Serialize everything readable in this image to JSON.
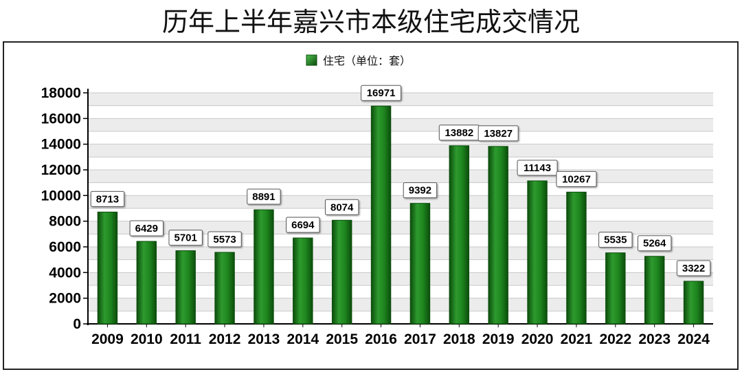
{
  "title": "历年上半年嘉兴市本级住宅成交情况",
  "colors": {
    "bar": "#1a7a1a",
    "bar_dark": "#0c4d0c",
    "bar_light": "#3aa33a",
    "grid": "#c8c8c8",
    "band": "#ececec"
  },
  "chart_data": {
    "type": "bar",
    "title": "历年上半年嘉兴市本级住宅成交情况",
    "categories": [
      "2009",
      "2010",
      "2011",
      "2012",
      "2013",
      "2014",
      "2015",
      "2016",
      "2017",
      "2018",
      "2019",
      "2020",
      "2021",
      "2022",
      "2023",
      "2024"
    ],
    "series": [
      {
        "name": "住宅（单位：套）",
        "values": [
          8713,
          6429,
          5701,
          5573,
          8891,
          6694,
          8074,
          16971,
          9392,
          13882,
          13827,
          11143,
          10267,
          5535,
          5264,
          3322
        ]
      }
    ],
    "ylim": [
      0,
      18000
    ],
    "yticks": [
      0,
      2000,
      4000,
      6000,
      8000,
      10000,
      12000,
      14000,
      16000,
      18000
    ],
    "grid": true,
    "legend": "top-center",
    "data_labels": true
  }
}
